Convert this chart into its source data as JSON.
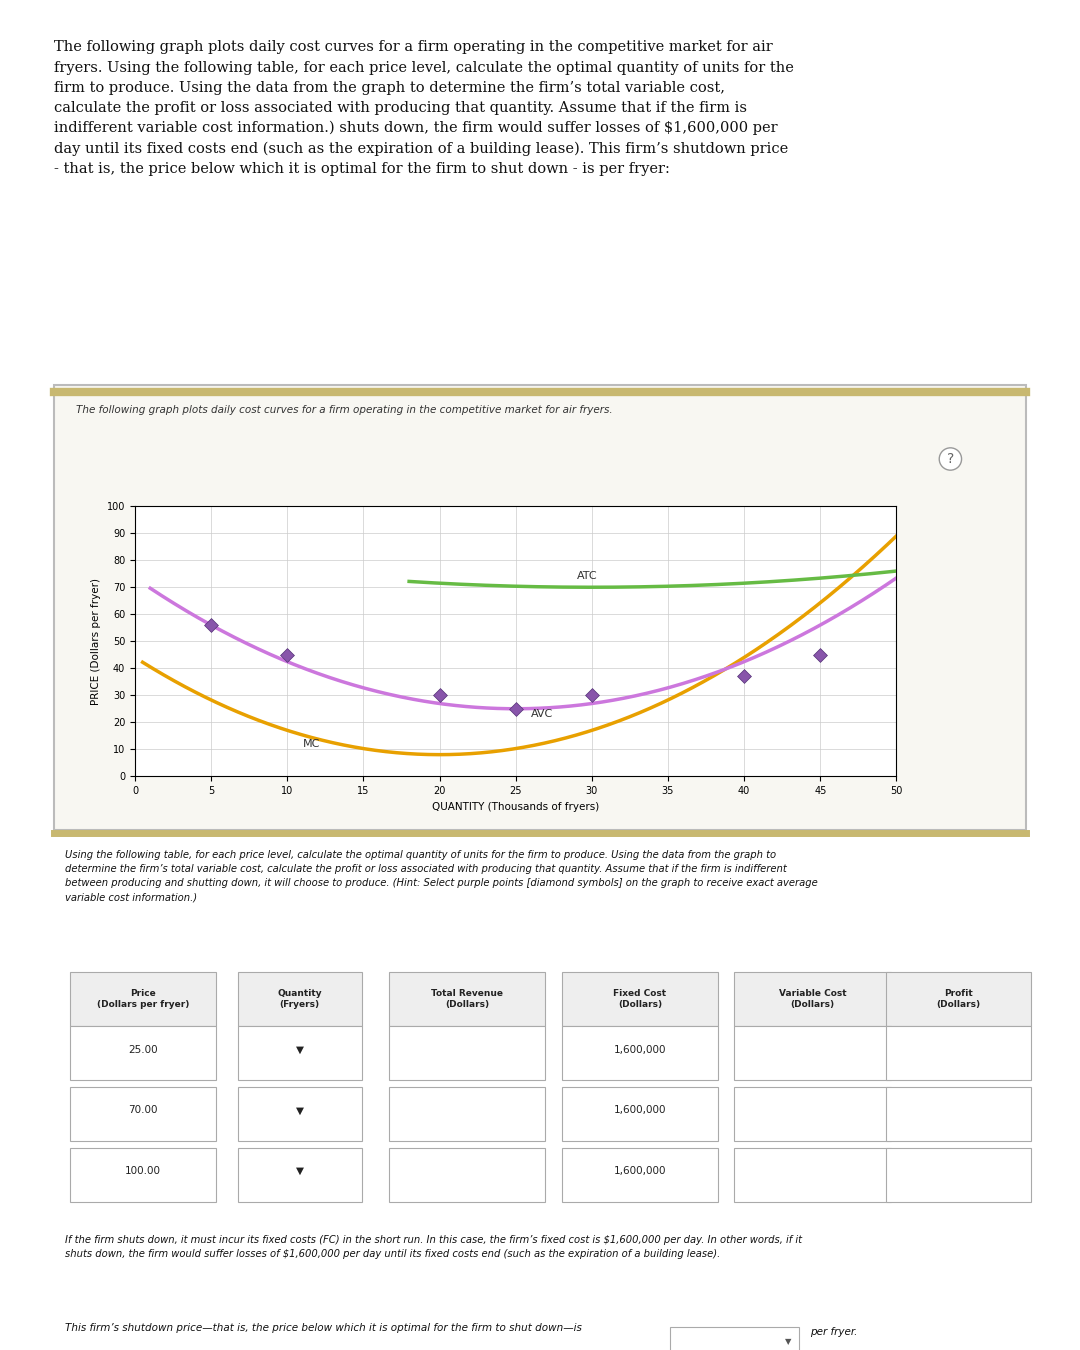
{
  "title_text": "The following graph plots daily cost curves for a firm operating in the competitive market for air\nfryers. Using the following table, for each price level, calculate the optimal quantity of units for the\nfirm to produce. Using the data from the graph to determine the firm’s total variable cost,\ncalculate the profit or loss associated with producing that quantity. Assume that if the firm is\nindifferent variable cost information.) shuts down, the firm would suffer losses of $1,600,000 per\nday until its fixed costs end (such as the expiration of a building lease). This firm’s shutdown price\n- that is, the price below which it is optimal for the firm to shut down - is per fryer:",
  "graph_subtitle": "The following graph plots daily cost curves for a firm operating in the competitive market for air fryers.",
  "xlabel": "QUANTITY (Thousands of fryers)",
  "ylabel": "PRICE (Dollars per fryer)",
  "xlim": [
    0,
    50
  ],
  "ylim": [
    0,
    100
  ],
  "xticks": [
    0,
    5,
    10,
    15,
    20,
    25,
    30,
    35,
    40,
    45,
    50
  ],
  "yticks": [
    0,
    10,
    20,
    30,
    40,
    50,
    60,
    70,
    80,
    90,
    100
  ],
  "mc_color": "#E8A000",
  "avc_color": "#CC77DD",
  "atc_color": "#66BB44",
  "diamond_color": "#8855AA",
  "diamond_points_x": [
    5,
    10,
    20,
    25,
    30,
    40,
    45
  ],
  "diamond_points_y": [
    56,
    45,
    30,
    25,
    30,
    37,
    45
  ],
  "table_subtitle": "Using the following table, for each price level, calculate the optimal quantity of units for the firm to produce. Using the data from the graph to\ndetermine the firm’s total variable cost, calculate the profit or loss associated with producing that quantity. Assume that if the firm is indifferent\nbetween producing and shutting down, it will choose to produce. (Hint: Select purple points [diamond symbols] on the graph to receive exact average\nvariable cost information.)",
  "prices": [
    "25.00",
    "70.00",
    "100.00"
  ],
  "fixed_costs": [
    "1,600,000",
    "1,600,000",
    "1,600,000"
  ],
  "footer_text1": "If the firm shuts down, it must incur its fixed costs (FC) in the short run. In this case, the firm’s fixed cost is $1,600,000 per day. In other words, if it\nshuts down, the firm would suffer losses of $1,600,000 per day until its fixed costs end (such as the expiration of a building lease).",
  "footer_text2": "This firm’s shutdown price—that is, the price below which it is optimal for the firm to shut down—is",
  "footer_suffix": "per fryer.",
  "background_outer": "#FFFFFF",
  "background_panel": "#F5F5F0",
  "background_plot": "#FFFFFF",
  "border_color": "#C8B870",
  "col_headers": [
    "Price\n(Dollars per fryer)",
    "Quantity\n(Fryers)",
    "Total Revenue\n(Dollars)",
    "Fixed Cost\n(Dollars)",
    "Variable Cost\n(Dollars)",
    "Profit\n(Dollars)"
  ]
}
